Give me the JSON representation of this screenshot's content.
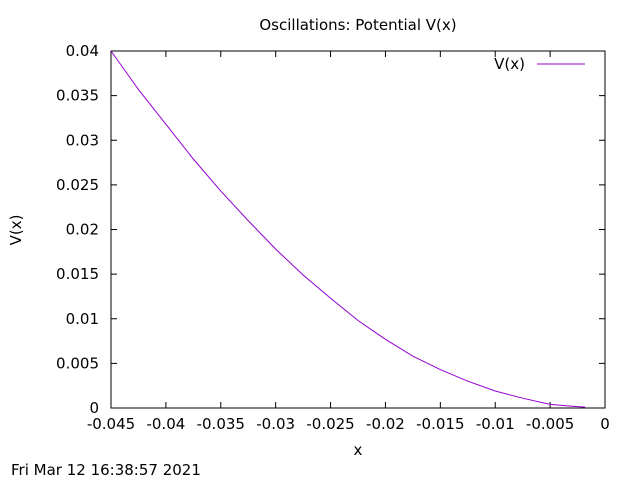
{
  "chart_data": {
    "type": "line",
    "title": "Oscillations: Potential V(x)",
    "xlabel": "x",
    "ylabel": "V(x)",
    "xlim": [
      -0.045,
      0
    ],
    "ylim": [
      0,
      0.04
    ],
    "grid": false,
    "legend_position": "top-right",
    "x_ticks": [
      -0.045,
      -0.04,
      -0.035,
      -0.03,
      -0.025,
      -0.02,
      -0.015,
      -0.01,
      -0.005,
      0
    ],
    "x_tick_labels": [
      "-0.045",
      "-0.04",
      "-0.035",
      "-0.03",
      "-0.025",
      "-0.02",
      "-0.015",
      "-0.01",
      "-0.005",
      "0"
    ],
    "y_ticks": [
      0,
      0.005,
      0.01,
      0.015,
      0.02,
      0.025,
      0.03,
      0.035,
      0.04
    ],
    "y_tick_labels": [
      "0",
      "0.005",
      "0.01",
      "0.015",
      "0.02",
      "0.025",
      "0.03",
      "0.035",
      "0.04"
    ],
    "series": [
      {
        "name": "V(x)",
        "color": "#9400d3",
        "x": [
          -0.045,
          -0.0425,
          -0.04,
          -0.0375,
          -0.035,
          -0.0325,
          -0.03,
          -0.0275,
          -0.025,
          -0.0225,
          -0.02,
          -0.0175,
          -0.015,
          -0.0125,
          -0.01,
          -0.0075,
          -0.005,
          -0.003,
          -0.0018
        ],
        "y": [
          0.04,
          0.0357,
          0.0318,
          0.0279,
          0.0243,
          0.021,
          0.0178,
          0.0149,
          0.0123,
          0.0098,
          0.0077,
          0.0058,
          0.0043,
          0.003,
          0.0019,
          0.0011,
          0.0004,
          0.0002,
          0.0001
        ]
      }
    ]
  },
  "timestamp": "Fri Mar 12 16:38:57 2021"
}
